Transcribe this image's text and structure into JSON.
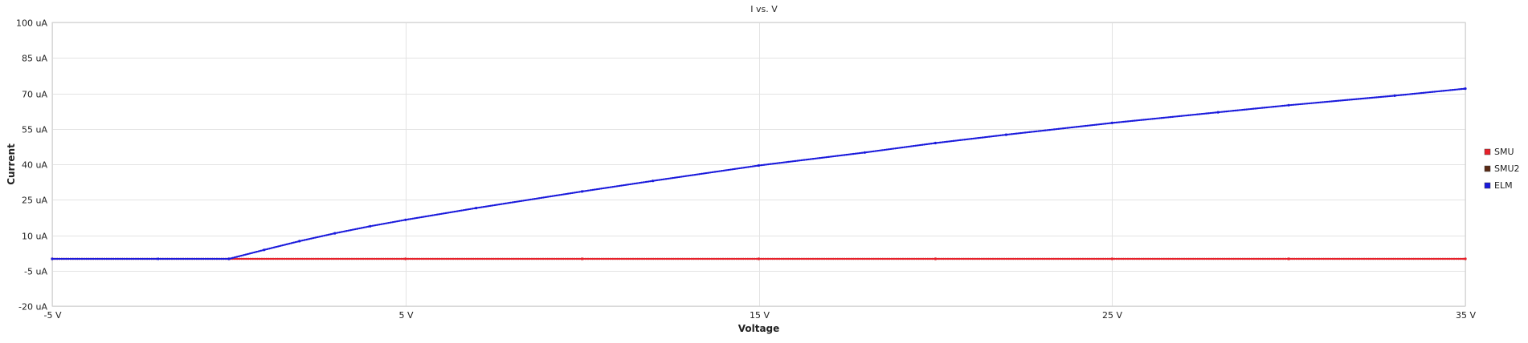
{
  "chart_data": {
    "type": "line",
    "title": "I vs. V",
    "xlabel": "Voltage",
    "ylabel": "Current",
    "xlim": [
      -5,
      35
    ],
    "ylim": [
      -20,
      100
    ],
    "x_ticks": [
      {
        "value": -5,
        "label": "-5 V"
      },
      {
        "value": 5,
        "label": "5 V"
      },
      {
        "value": 15,
        "label": "15 V"
      },
      {
        "value": 25,
        "label": "25 V"
      },
      {
        "value": 35,
        "label": "35 V"
      }
    ],
    "y_ticks": [
      {
        "value": -20,
        "label": "-20 uA"
      },
      {
        "value": -5,
        "label": "-5 uA"
      },
      {
        "value": 10,
        "label": "10 uA"
      },
      {
        "value": 25,
        "label": "25 uA"
      },
      {
        "value": 40,
        "label": "40 uA"
      },
      {
        "value": 55,
        "label": "55 uA"
      },
      {
        "value": 70,
        "label": "70 uA"
      },
      {
        "value": 85,
        "label": "85 uA"
      },
      {
        "value": 100,
        "label": "100 uA"
      }
    ],
    "grid": true,
    "legend": "right",
    "series": [
      {
        "name": "SMU",
        "color": "#e8202a",
        "x": [
          -5,
          0,
          5,
          10,
          15,
          20,
          25,
          30,
          35
        ],
        "y": [
          0,
          0,
          0,
          0,
          0,
          0,
          0,
          0,
          0
        ]
      },
      {
        "name": "SMU2",
        "color": "#5a2a14",
        "x": [
          -5,
          0,
          5,
          10,
          15,
          20,
          25,
          30,
          35
        ],
        "y": [
          0,
          0,
          0,
          0,
          0,
          0,
          0,
          0,
          0
        ]
      },
      {
        "name": "ELM",
        "color": "#1a1adc",
        "x": [
          -5,
          -2,
          0,
          1,
          2,
          3,
          4,
          5,
          7,
          10,
          12,
          15,
          18,
          20,
          22,
          25,
          28,
          30,
          33,
          35
        ],
        "y": [
          0,
          0,
          0,
          3.8,
          7.5,
          10.8,
          13.8,
          16.5,
          21.5,
          28.5,
          33,
          39.5,
          45,
          49,
          52.5,
          57.5,
          62,
          65,
          69,
          72
        ]
      }
    ]
  }
}
